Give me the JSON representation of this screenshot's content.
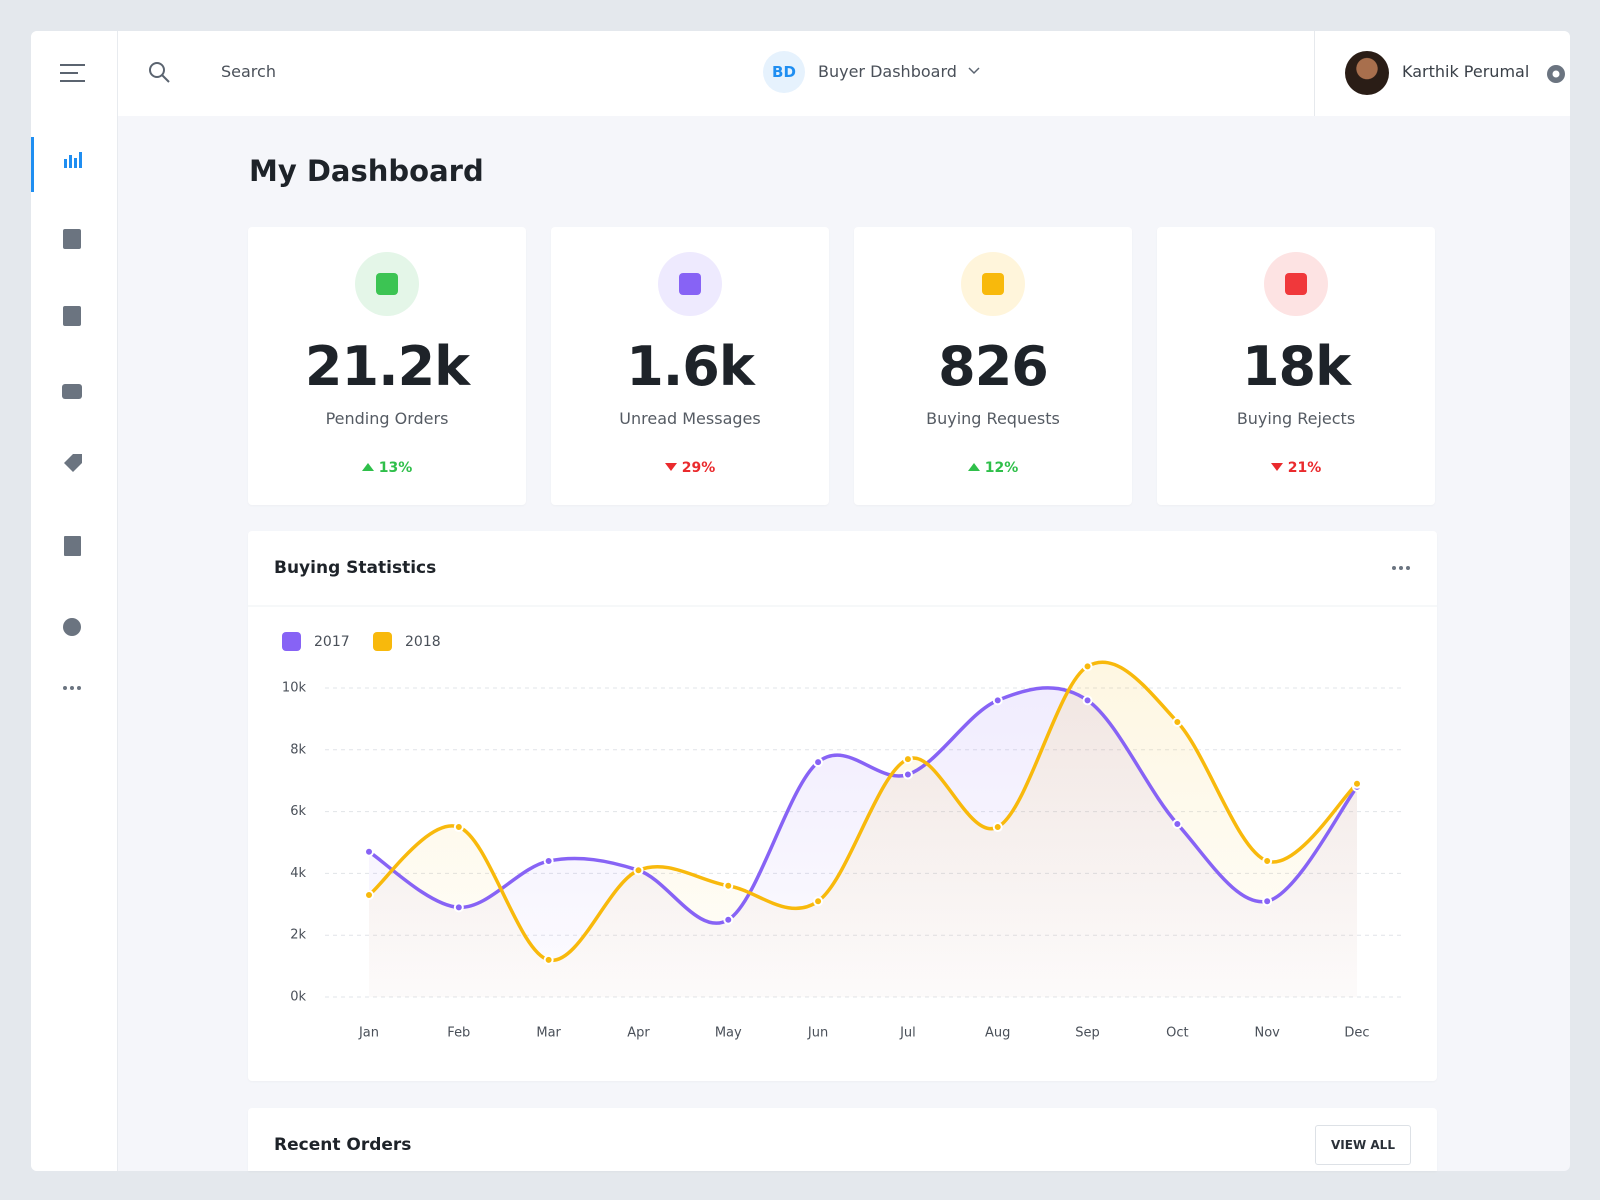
{
  "header": {
    "search": "Search",
    "badge": "BD",
    "dashboard": "Buyer Dashboard",
    "user": "Karthik Perumal"
  },
  "title": "My Dashboard",
  "cards": [
    {
      "value": "21.2k",
      "label": "Pending Orders",
      "change": "13%",
      "direction": "up"
    },
    {
      "value": "1.6k",
      "label": "Unread Messages",
      "change": "29%",
      "direction": "down"
    },
    {
      "value": "826",
      "label": "Buying Requests",
      "change": "12%",
      "direction": "up"
    },
    {
      "value": "18k",
      "label": "Buying Rejects",
      "change": "21%",
      "direction": "down"
    }
  ],
  "chart_data": {
    "type": "line",
    "title": "Buying Statistics",
    "categories": [
      "Jan",
      "Feb",
      "Mar",
      "Apr",
      "May",
      "Jun",
      "Jul",
      "Aug",
      "Sep",
      "Oct",
      "Nov",
      "Dec"
    ],
    "series": [
      {
        "name": "2017",
        "color": "#8763f5",
        "values": [
          4700,
          2900,
          4400,
          4100,
          2500,
          7600,
          7200,
          9600,
          9600,
          5600,
          3100,
          6800
        ]
      },
      {
        "name": "2018",
        "color": "#f8b90c",
        "values": [
          3300,
          5500,
          1200,
          4100,
          3600,
          3100,
          7700,
          5500,
          10700,
          8900,
          4400,
          6900
        ]
      }
    ],
    "ylim": [
      0,
      10000
    ],
    "yticks": [
      {
        "value": 0,
        "label": "0k"
      },
      {
        "value": 2000,
        "label": "2k"
      },
      {
        "value": 4000,
        "label": "4k"
      },
      {
        "value": 6000,
        "label": "6k"
      },
      {
        "value": 8000,
        "label": "8k"
      },
      {
        "value": 10000,
        "label": "10k"
      }
    ],
    "grid": true,
    "smooth": true
  },
  "recent_orders": {
    "title": "Recent Orders",
    "button": "VIEW ALL"
  }
}
